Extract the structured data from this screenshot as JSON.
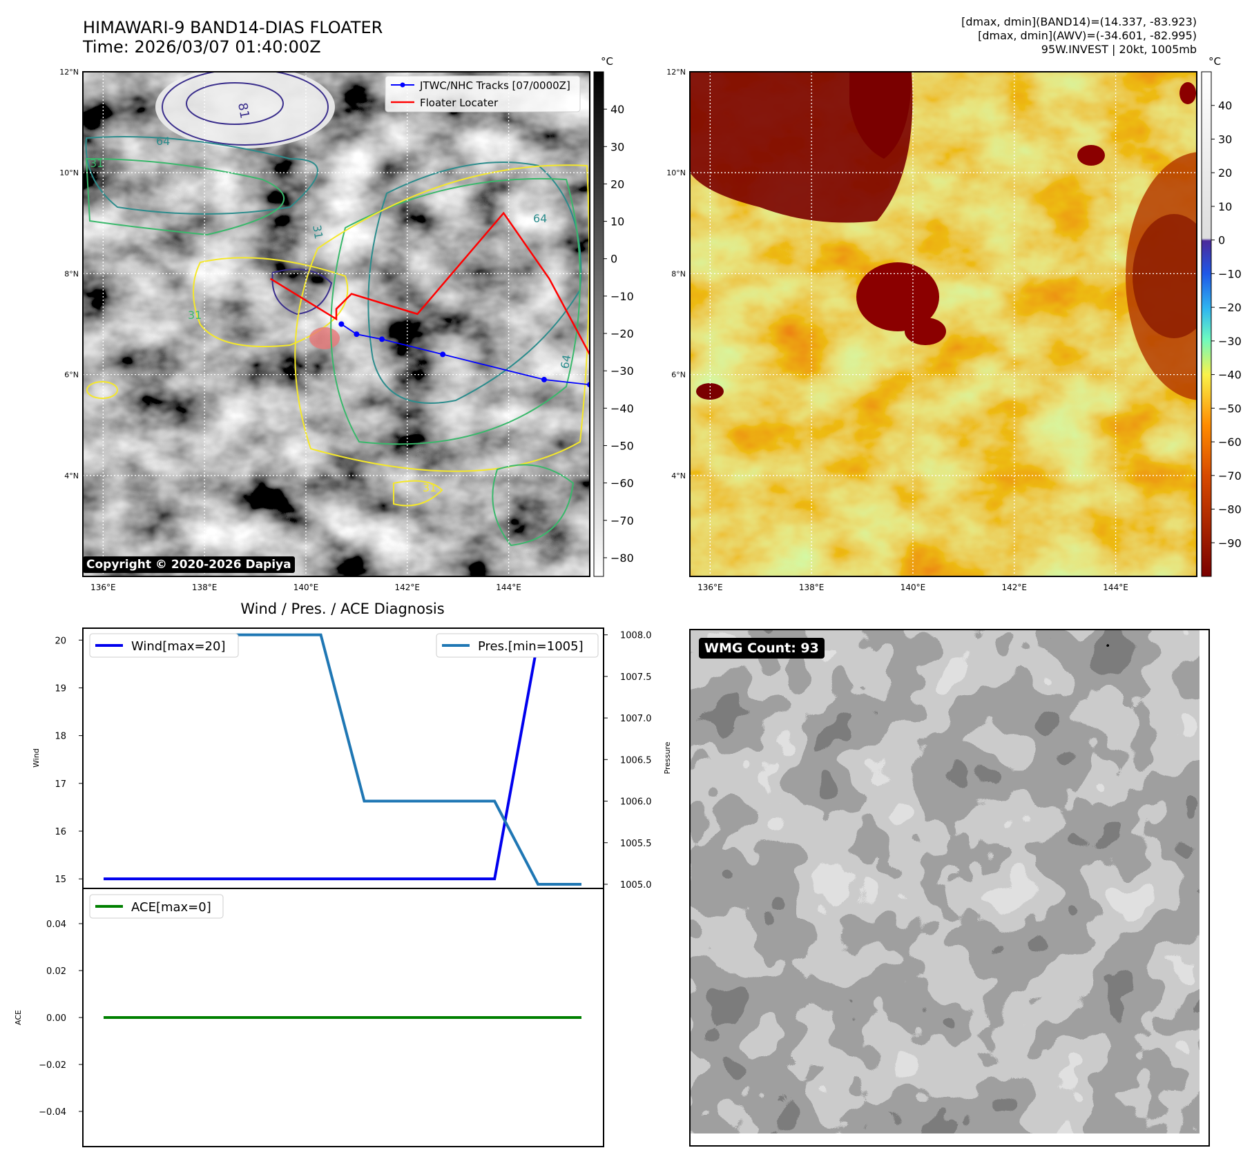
{
  "header": {
    "title_line1": "HIMAWARI-9 BAND14-DIAS FLOATER",
    "title_line2": "Time: 2026/03/07 01:40:00Z",
    "stats_line1": "[dmax, dmin](BAND14)=(14.337, -83.923)",
    "stats_line2": "[dmax, dmin](AWV)=(-34.601, -82.995)",
    "stats_line3": "95W.INVEST | 20kt, 1005mb"
  },
  "copyright": "Copyright © 2020-2026 Dapiya",
  "wmg_label": "WMG Count: 93",
  "colors": {
    "track": "#0000ff",
    "locater": "#ff0000",
    "wind": "#0000ee",
    "pressure": "#1f77b4",
    "ace": "#008000"
  },
  "chart_data": [
    {
      "type": "heatmap",
      "name": "band14_grayscale_map",
      "xlabel": "",
      "ylabel": "",
      "lon_ticks": [
        "136°E",
        "138°E",
        "140°E",
        "142°E",
        "144°E"
      ],
      "lon_tick_values": [
        136,
        138,
        140,
        142,
        144
      ],
      "lat_ticks": [
        "12°N",
        "10°N",
        "8°N",
        "6°N",
        "4°N"
      ],
      "lat_tick_values": [
        12,
        10,
        8,
        6,
        4
      ],
      "xlim": [
        135.6,
        145.6
      ],
      "ylim": [
        2.0,
        12.0
      ],
      "grid": true,
      "colorbar_unit": "°C",
      "colorbar_ticks": [
        "40",
        "30",
        "20",
        "10",
        "0",
        "−10",
        "−20",
        "−30",
        "−40",
        "−50",
        "−60",
        "−70",
        "−80"
      ],
      "colorbar_range": [
        -85,
        50
      ],
      "contour_labels": [
        "81",
        "31",
        "64",
        "31",
        "64",
        "31",
        "31",
        "64"
      ],
      "legend_position": "top-right",
      "legend": [
        "JTWC/NHC Tracks [07/0000Z]",
        "Floater Locater"
      ],
      "track_points": [
        {
          "lon": 140.7,
          "lat": 7.0
        },
        {
          "lon": 141.0,
          "lat": 6.8
        },
        {
          "lon": 141.5,
          "lat": 6.7
        },
        {
          "lon": 142.7,
          "lat": 6.4
        },
        {
          "lon": 144.7,
          "lat": 5.9
        },
        {
          "lon": 145.6,
          "lat": 5.8
        }
      ],
      "locater_points": [
        {
          "lon": 139.3,
          "lat": 7.9
        },
        {
          "lon": 140.6,
          "lat": 7.1
        },
        {
          "lon": 140.6,
          "lat": 7.3
        },
        {
          "lon": 140.9,
          "lat": 7.6
        },
        {
          "lon": 142.2,
          "lat": 7.2
        },
        {
          "lon": 143.9,
          "lat": 9.2
        },
        {
          "lon": 144.8,
          "lat": 7.9
        },
        {
          "lon": 145.6,
          "lat": 6.4
        }
      ]
    },
    {
      "type": "heatmap",
      "name": "band14_color_map",
      "xlabel": "",
      "ylabel": "",
      "lon_ticks": [
        "136°E",
        "138°E",
        "140°E",
        "142°E",
        "144°E"
      ],
      "lon_tick_values": [
        136,
        138,
        140,
        142,
        144
      ],
      "lat_ticks": [
        "12°N",
        "10°N",
        "8°N",
        "6°N",
        "4°N"
      ],
      "lat_tick_values": [
        12,
        10,
        8,
        6,
        4
      ],
      "xlim": [
        135.6,
        145.6
      ],
      "ylim": [
        2.0,
        12.0
      ],
      "grid": true,
      "colorbar_unit": "°C",
      "colorbar_ticks": [
        "40",
        "30",
        "20",
        "10",
        "0",
        "−10",
        "−20",
        "−30",
        "−40",
        "−50",
        "−60",
        "−70",
        "−80",
        "−90"
      ],
      "colorbar_range": [
        -100,
        50
      ]
    },
    {
      "type": "line",
      "name": "wind_pressure_diagnosis",
      "title": "Wind / Pres. / ACE Diagnosis",
      "x": [
        0,
        1,
        2,
        3,
        4,
        5,
        6,
        7,
        8,
        9,
        10,
        11
      ],
      "series": [
        {
          "name": "Wind[max=20]",
          "axis": "left",
          "values": [
            15,
            15,
            15,
            15,
            15,
            15,
            15,
            15,
            15,
            15,
            20,
            20
          ]
        },
        {
          "name": "Pres.[min=1005]",
          "axis": "right",
          "values": [
            1008,
            1008,
            1008,
            1008,
            1008,
            1008,
            1006,
            1006,
            1006,
            1006,
            1005,
            1005
          ]
        }
      ],
      "ylabel": "Wind",
      "ylabel_right": "Pressure",
      "ylim": [
        14.8,
        20.25
      ],
      "ylim_right": [
        1004.95,
        1008.08
      ],
      "yticks": [
        "20",
        "19",
        "18",
        "17",
        "16",
        "15"
      ],
      "yticks_right": [
        "1008.0",
        "1007.5",
        "1007.0",
        "1006.5",
        "1006.0",
        "1005.5",
        "1005.0"
      ],
      "grid": false,
      "legend": [
        "top-left",
        "top-right"
      ]
    },
    {
      "type": "line",
      "name": "ace_diagnosis",
      "x": [
        0,
        11
      ],
      "series": [
        {
          "name": "ACE[max=0]",
          "values": [
            0,
            0
          ]
        }
      ],
      "ylabel": "ACE",
      "ylim": [
        -0.055,
        0.055
      ],
      "yticks": [
        "0.04",
        "0.02",
        "0.00",
        "−0.02",
        "−0.04"
      ],
      "grid": false,
      "legend": "top-left"
    },
    {
      "type": "heatmap",
      "name": "wmg_grid",
      "grid": false
    }
  ]
}
